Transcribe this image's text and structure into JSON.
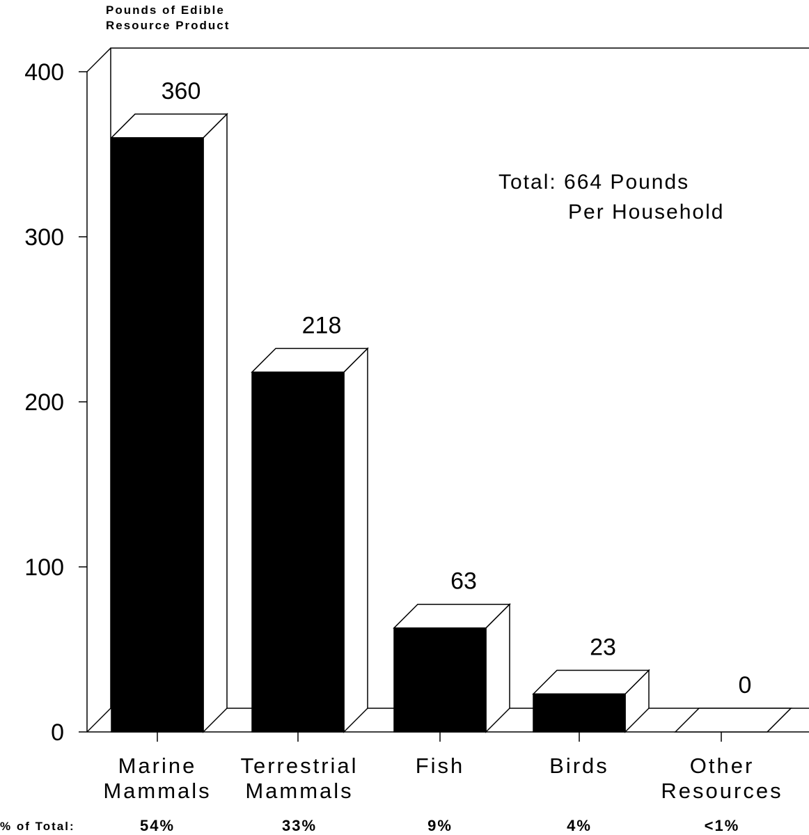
{
  "chart_data": {
    "type": "bar",
    "title": "",
    "ylabel_lines": [
      "Pounds of Edible",
      "Resource Product"
    ],
    "xlabel": "",
    "ylim": [
      0,
      400
    ],
    "yticks": [
      0,
      100,
      200,
      300,
      400
    ],
    "grid": false,
    "style": "3d",
    "bar_color": "#000000",
    "categories": [
      {
        "lines": [
          "Marine",
          "Mammals"
        ]
      },
      {
        "lines": [
          "Terrestrial",
          "Mammals"
        ]
      },
      {
        "lines": [
          "Fish"
        ]
      },
      {
        "lines": [
          "Birds"
        ]
      },
      {
        "lines": [
          "Other",
          "Resources"
        ]
      }
    ],
    "values": [
      360,
      218,
      63,
      23,
      0
    ],
    "data_labels": [
      "360",
      "218",
      "63",
      "23",
      "0"
    ],
    "annotation_lines": [
      "Total: 664 Pounds",
      "Per Household"
    ],
    "percent_label": "% of Total:",
    "percents": [
      "54%",
      "33%",
      "9%",
      "4%",
      "<1%"
    ]
  }
}
